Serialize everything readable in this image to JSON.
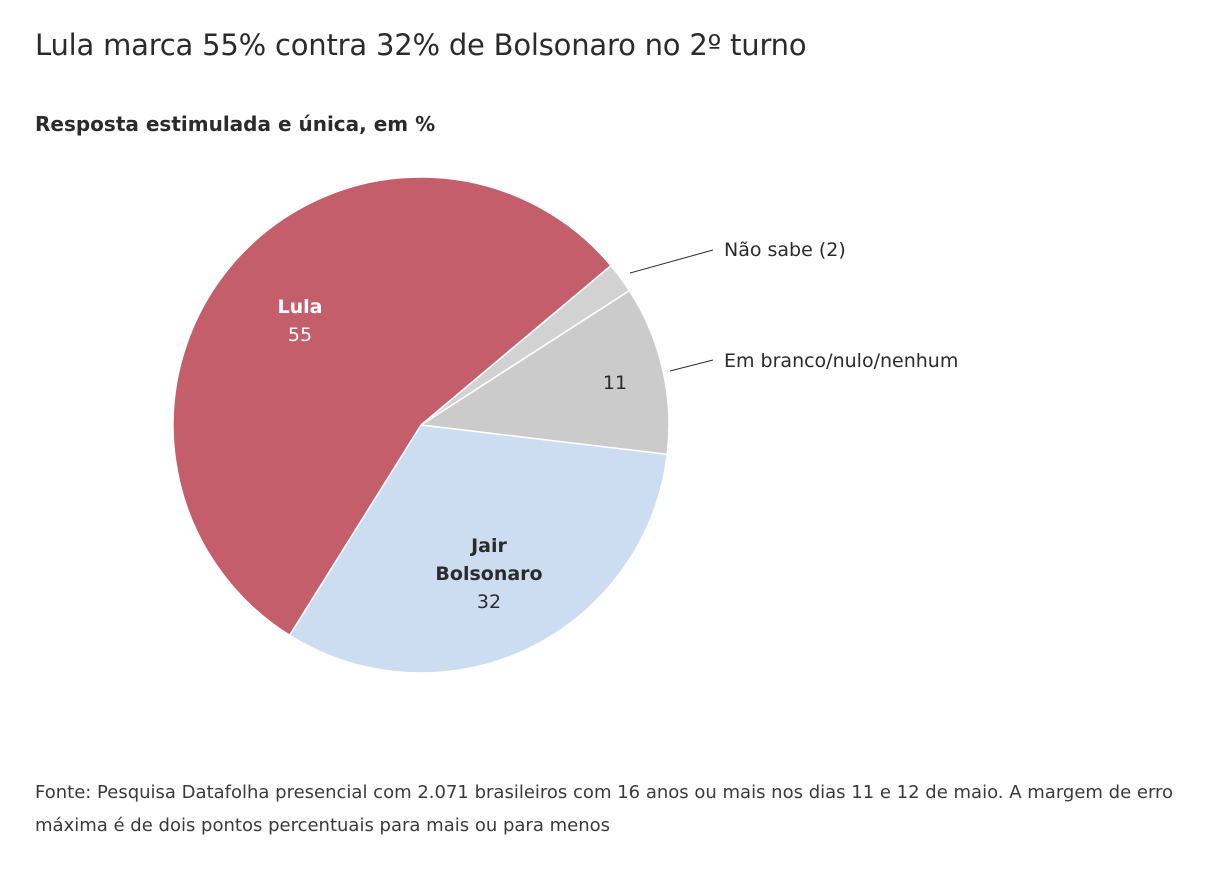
{
  "header": {
    "title": "Lula marca 55% contra 32% de Bolsonaro no 2º turno",
    "subtitle": "Resposta estimulada e única, em %"
  },
  "footer": {
    "source": "Fonte: Pesquisa Datafolha presencial com 2.071 brasileiros com 16 anos ou mais nos dias 11 e 12 de maio. A margem de erro máxima é de dois pontos percentuais para mais ou para menos"
  },
  "chart_data": {
    "type": "pie",
    "title": "Lula marca 55% contra 32% de Bolsonaro no 2º turno",
    "subtitle": "Resposta estimulada e única, em %",
    "unit": "%",
    "slices": [
      {
        "label": "Não sabe",
        "display_label": "Não sabe (2)",
        "value": 2,
        "color": "#d2d2d2",
        "label_position": "outside"
      },
      {
        "label": "Em branco/nulo/nenhum",
        "display_label": "Em branco/nulo/nenhum",
        "display_value": "11",
        "value": 11,
        "color": "#cbcbcb",
        "label_position": "outside"
      },
      {
        "label": "Jair Bolsonaro",
        "label_lines": [
          "Jair",
          "Bolsonaro"
        ],
        "display_value": "32",
        "value": 32,
        "color": "#ccddf1",
        "text_color": "#2b2b2b",
        "label_position": "inside"
      },
      {
        "label": "Lula",
        "label_lines": [
          "Lula"
        ],
        "display_value": "55",
        "value": 55,
        "color": "#c45e6b",
        "text_color": "#ffffff",
        "label_position": "inside"
      }
    ]
  }
}
